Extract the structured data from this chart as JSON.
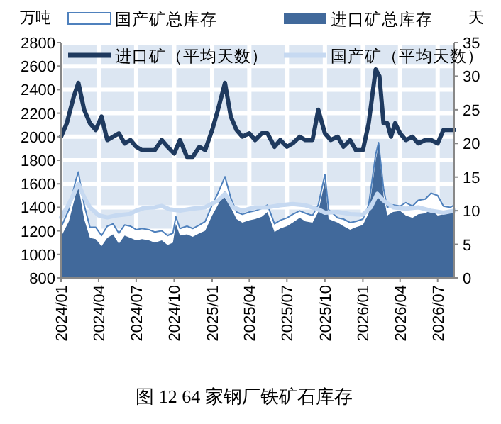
{
  "chart_data": {
    "type": "area",
    "title": "图 12 64 家钢厂铁矿石库存",
    "ylabel": "万吨",
    "y2label": "天",
    "x": [
      "2024-01-01",
      "2024-01-20",
      "2024-02-05",
      "2024-02-12",
      "2024-02-26",
      "2024-03-11",
      "2024-03-25",
      "2024-04-08",
      "2024-04-22",
      "2024-05-06",
      "2024-05-20",
      "2024-06-03",
      "2024-06-17",
      "2024-07-01",
      "2024-07-15",
      "2024-08-01",
      "2024-08-15",
      "2024-09-01",
      "2024-09-15",
      "2024-09-28",
      "2024-10-05",
      "2024-10-15",
      "2024-11-01",
      "2024-11-15",
      "2024-12-01",
      "2024-12-15",
      "2025-01-01",
      "2025-01-15",
      "2025-02-01",
      "2025-02-15",
      "2025-03-01",
      "2025-03-15",
      "2025-04-01",
      "2025-04-15",
      "2025-05-01",
      "2025-05-15",
      "2025-06-01",
      "2025-06-15",
      "2025-07-01",
      "2025-07-15",
      "2025-08-01",
      "2025-08-15",
      "2025-09-01",
      "2025-09-15",
      "2025-10-01",
      "2025-10-10",
      "2025-11-01",
      "2025-11-15",
      "2025-12-01",
      "2025-12-15",
      "2026-01-01",
      "2026-01-15",
      "2026-02-01",
      "2026-02-08",
      "2026-02-20",
      "2026-03-01",
      "2026-03-15",
      "2026-04-01",
      "2026-04-15",
      "2026-05-01",
      "2026-05-15",
      "2026-06-01",
      "2026-06-15",
      "2026-07-01",
      "2026-07-15",
      "2026-08-01",
      "2026-08-10"
    ],
    "series": [
      {
        "name": "国产矿总库存",
        "color": "#4f81bd",
        "values": [
          1230,
          1380,
          1620,
          1700,
          1420,
          1230,
          1230,
          1160,
          1240,
          1260,
          1180,
          1250,
          1240,
          1210,
          1220,
          1210,
          1190,
          1200,
          1160,
          1180,
          1320,
          1220,
          1240,
          1220,
          1250,
          1280,
          1420,
          1520,
          1660,
          1480,
          1360,
          1340,
          1360,
          1370,
          1390,
          1420,
          1260,
          1290,
          1310,
          1340,
          1370,
          1350,
          1330,
          1420,
          1680,
          1380,
          1310,
          1300,
          1270,
          1280,
          1300,
          1420,
          1850,
          1950,
          1560,
          1400,
          1420,
          1410,
          1440,
          1410,
          1460,
          1470,
          1520,
          1500,
          1410,
          1400,
          1420
        ]
      },
      {
        "name": "进口矿总库存",
        "color": "#41699b",
        "values": [
          1150,
          1280,
          1500,
          1580,
          1300,
          1140,
          1130,
          1070,
          1140,
          1170,
          1090,
          1160,
          1140,
          1120,
          1130,
          1120,
          1100,
          1120,
          1080,
          1100,
          1260,
          1160,
          1170,
          1150,
          1180,
          1200,
          1330,
          1420,
          1540,
          1400,
          1300,
          1270,
          1290,
          1300,
          1320,
          1360,
          1190,
          1220,
          1240,
          1270,
          1310,
          1280,
          1270,
          1360,
          1620,
          1300,
          1270,
          1240,
          1210,
          1230,
          1250,
          1350,
          1800,
          1930,
          1500,
          1330,
          1360,
          1370,
          1330,
          1310,
          1340,
          1350,
          1380,
          1330,
          1340,
          1350,
          1360
        ]
      },
      {
        "name": "进口矿（平均天数）",
        "type": "line",
        "axis": "y2",
        "color": "#1f3a5f",
        "x": [
          "2024-01-01",
          "2024-01-15",
          "2024-02-01",
          "2024-02-12",
          "2024-02-26",
          "2024-03-11",
          "2024-03-25",
          "2024-04-08",
          "2024-04-22",
          "2024-05-06",
          "2024-05-20",
          "2024-06-03",
          "2024-06-17",
          "2024-07-01",
          "2024-07-15",
          "2024-08-01",
          "2024-08-15",
          "2024-09-01",
          "2024-09-15",
          "2024-10-01",
          "2024-10-15",
          "2024-11-01",
          "2024-11-15",
          "2024-12-01",
          "2024-12-15",
          "2025-01-01",
          "2025-01-15",
          "2025-02-01",
          "2025-02-15",
          "2025-03-01",
          "2025-03-15",
          "2025-04-01",
          "2025-04-15",
          "2025-05-01",
          "2025-05-15",
          "2025-06-01",
          "2025-06-15",
          "2025-07-01",
          "2025-07-15",
          "2025-08-01",
          "2025-08-15",
          "2025-09-01",
          "2025-09-15",
          "2025-10-01",
          "2025-10-15",
          "2025-11-01",
          "2025-11-15",
          "2025-12-01",
          "2025-12-15",
          "2026-01-01",
          "2026-01-15",
          "2026-02-01",
          "2026-02-10",
          "2026-02-20",
          "2026-03-01",
          "2026-03-10",
          "2026-03-20",
          "2026-04-01",
          "2026-04-15",
          "2026-05-01",
          "2026-05-15",
          "2026-06-01",
          "2026-06-15",
          "2026-07-01",
          "2026-07-15",
          "2026-08-01",
          "2026-08-10"
        ],
        "values": [
          21,
          23,
          27,
          29,
          25,
          23,
          22,
          24,
          20.5,
          21,
          21.5,
          20,
          20.5,
          19.5,
          19,
          19,
          19,
          20.5,
          19.5,
          18.5,
          20.5,
          18,
          18,
          19.5,
          19,
          22,
          25,
          29,
          24,
          22,
          21,
          21.5,
          20.5,
          21.5,
          21.5,
          19.5,
          20.5,
          19.5,
          20,
          21,
          20.5,
          20.5,
          25,
          21.5,
          20.5,
          21,
          19.5,
          20.5,
          19,
          19,
          23,
          31,
          30,
          23,
          23,
          21,
          23,
          21.5,
          20.5,
          21,
          20,
          20.5,
          20.5,
          20,
          22,
          22,
          22
        ]
      },
      {
        "name": "国产矿（平均天数）",
        "type": "line",
        "axis": "y2",
        "color": "#c6d9f1",
        "x": [
          "2024-01-01",
          "2024-01-20",
          "2024-02-12",
          "2024-02-26",
          "2024-03-11",
          "2024-04-01",
          "2024-04-22",
          "2024-05-15",
          "2024-06-15",
          "2024-07-01",
          "2024-07-20",
          "2024-08-15",
          "2024-09-01",
          "2024-09-20",
          "2024-10-15",
          "2024-11-15",
          "2024-12-15",
          "2025-01-15",
          "2025-02-01",
          "2025-02-20",
          "2025-03-15",
          "2025-04-15",
          "2025-05-15",
          "2025-06-15",
          "2025-07-15",
          "2025-08-15",
          "2025-09-15",
          "2025-10-01",
          "2025-11-01",
          "2025-12-01",
          "2026-01-01",
          "2026-01-20",
          "2026-02-05",
          "2026-02-20",
          "2026-03-15",
          "2026-04-15",
          "2026-05-15",
          "2026-06-15",
          "2026-07-15",
          "2026-08-10"
        ],
        "values": [
          9,
          11,
          14,
          12,
          10.5,
          9.3,
          9,
          9.3,
          9.5,
          10,
          10.4,
          10.5,
          10.7,
          10.2,
          10,
          10.3,
          10.5,
          11.5,
          12.5,
          10.5,
          10,
          10.5,
          10.5,
          10.8,
          11,
          10.8,
          10.2,
          9.7,
          9.8,
          9.5,
          9.4,
          10.5,
          12.5,
          11.5,
          10.5,
          10.3,
          10.5,
          10,
          9.7,
          10
        ]
      }
    ],
    "xlim": [
      "2024-01-01",
      "2026-08-10"
    ],
    "xticks": [
      {
        "value": "2024-01",
        "label": "2024/01"
      },
      {
        "value": "2024-04",
        "label": "2024/04"
      },
      {
        "value": "2024-07",
        "label": "2024/07"
      },
      {
        "value": "2024-10",
        "label": "2024/10"
      },
      {
        "value": "2025-01",
        "label": "2025/01"
      },
      {
        "value": "2025-04",
        "label": "2025/04"
      },
      {
        "value": "2025-07",
        "label": "2025/07"
      },
      {
        "value": "2025-10",
        "label": "2025/10"
      },
      {
        "value": "2026-01",
        "label": "2026/01"
      },
      {
        "value": "2026-04",
        "label": "2026/04"
      },
      {
        "value": "2026-07",
        "label": "2026/07"
      }
    ],
    "ylim": [
      800,
      2800
    ],
    "yticks": [
      800,
      1000,
      1200,
      1400,
      1600,
      1800,
      2000,
      2200,
      2400,
      2600,
      2800
    ],
    "y2lim": [
      0,
      35
    ],
    "y2ticks": [
      0,
      5,
      10,
      15,
      20,
      25,
      30,
      35
    ],
    "grid": true,
    "legend": "top"
  }
}
